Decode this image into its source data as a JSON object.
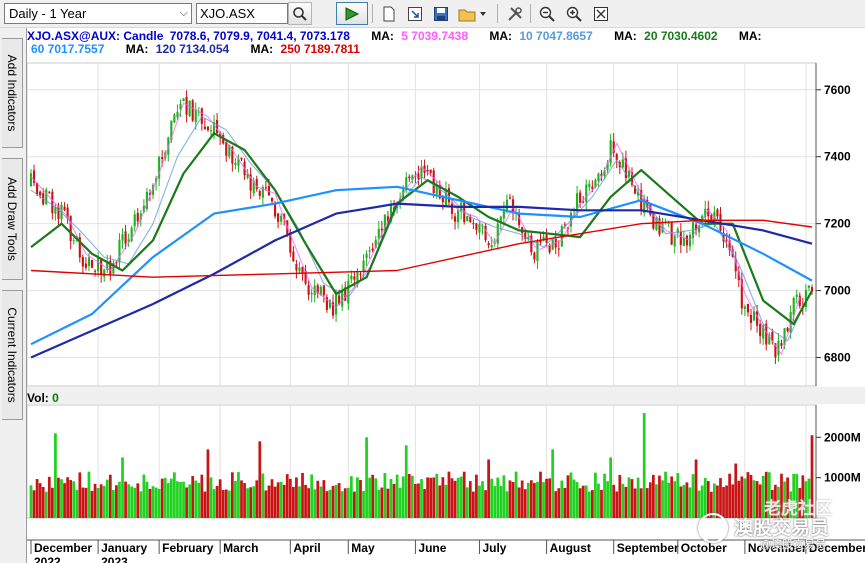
{
  "toolbar": {
    "period_select": "Daily - 1 Year",
    "symbol_input": "XJO.ASX"
  },
  "side_tabs": [
    "Add Indicators",
    "Add Draw Tools",
    "Current Indicators"
  ],
  "legend": {
    "symbol": "XJO.ASX@AUX: Candle",
    "ohlc": "7078.6, 7079.9, 7041.4, 7073.178",
    "ma": [
      {
        "label": "MA:",
        "text": "5 7039.7438",
        "color": "#ff5cff"
      },
      {
        "label": "MA:",
        "text": "10 7047.8657",
        "color": "#5b9bd5"
      },
      {
        "label": "MA:",
        "text": "20 7030.4602",
        "color": "#1a7a1a"
      },
      {
        "label": "MA:",
        "text": "60 7017.7557",
        "color": "#1e90ff"
      },
      {
        "label": "MA:",
        "text": "120 7134.054",
        "color": "#1c2aa8"
      },
      {
        "label": "MA:",
        "text": "250 7189.7811",
        "color": "#e00000"
      }
    ]
  },
  "volume": {
    "label": "Vol:",
    "value": "0"
  },
  "watermark": {
    "line1": "老虎社区",
    "line2": "澳股交易员",
    "line3": "@澳股交易员"
  },
  "chart_data": {
    "type": "candlestick",
    "y_ticks": [
      6800,
      7000,
      7200,
      7400,
      7600
    ],
    "ylim": [
      6715,
      7680
    ],
    "volume_ticks": [
      "1000M",
      "2000M"
    ],
    "months": [
      "December",
      "January",
      "February",
      "March",
      "April",
      "May",
      "June",
      "July",
      "August",
      "September",
      "October",
      "November",
      "December"
    ],
    "years": [
      "2022",
      "2023"
    ],
    "series": [
      {
        "name": "MA 5",
        "color": "#ff5cff",
        "x": [
          0,
          6,
          12,
          18,
          26,
          34,
          42,
          50,
          58,
          66,
          74,
          80,
          84,
          92,
          100,
          108,
          116,
          122,
          128,
          134,
          140,
          146,
          152,
          158,
          166,
          174,
          180,
          186,
          192,
          200,
          208,
          216,
          222,
          228,
          234,
          240,
          246,
          252
        ],
        "y": [
          7340,
          7280,
          7220,
          7110,
          7060,
          7170,
          7350,
          7560,
          7520,
          7420,
          7310,
          7290,
          7190,
          7010,
          6950,
          7030,
          7190,
          7290,
          7370,
          7320,
          7240,
          7220,
          7140,
          7250,
          7120,
          7150,
          7260,
          7320,
          7440,
          7290,
          7180,
          7150,
          7240,
          7180,
          6990,
          6890,
          6810,
          6980
        ]
      },
      {
        "name": "MA 10",
        "color": "#5b9bd5",
        "x": [
          0,
          8,
          16,
          24,
          32,
          40,
          48,
          56,
          64,
          72,
          80,
          88,
          96,
          104,
          112,
          120,
          128,
          136,
          144,
          152,
          160,
          168,
          176,
          184,
          192,
          200,
          208,
          216,
          224,
          232,
          240,
          248,
          252
        ],
        "y": [
          7300,
          7250,
          7180,
          7100,
          7080,
          7200,
          7400,
          7520,
          7480,
          7380,
          7300,
          7180,
          7020,
          6980,
          7080,
          7250,
          7340,
          7290,
          7220,
          7190,
          7170,
          7130,
          7200,
          7280,
          7390,
          7280,
          7170,
          7180,
          7200,
          7080,
          6900,
          6850,
          6930
        ]
      },
      {
        "name": "MA 20",
        "color": "#1a7a1a",
        "x": [
          0,
          10,
          20,
          30,
          40,
          50,
          60,
          70,
          80,
          90,
          100,
          110,
          120,
          130,
          140,
          150,
          160,
          170,
          180,
          190,
          200,
          210,
          220,
          230,
          240,
          250,
          256
        ],
        "y": [
          7130,
          7200,
          7110,
          7060,
          7150,
          7350,
          7470,
          7420,
          7300,
          7140,
          6990,
          7040,
          7260,
          7330,
          7280,
          7220,
          7180,
          7170,
          7160,
          7280,
          7360,
          7280,
          7200,
          7200,
          6970,
          6900,
          7000
        ]
      },
      {
        "name": "MA 60",
        "color": "#1e90ff",
        "x": [
          0,
          20,
          40,
          60,
          80,
          100,
          120,
          140,
          160,
          180,
          200,
          220,
          240,
          256
        ],
        "y": [
          6840,
          6930,
          7100,
          7230,
          7260,
          7300,
          7310,
          7270,
          7230,
          7220,
          7270,
          7200,
          7110,
          7030
        ]
      },
      {
        "name": "MA 120",
        "color": "#1c2aa8",
        "x": [
          0,
          40,
          60,
          80,
          100,
          120,
          140,
          160,
          180,
          200,
          220,
          240,
          256
        ],
        "y": [
          6800,
          6960,
          7050,
          7150,
          7230,
          7260,
          7250,
          7250,
          7240,
          7240,
          7210,
          7180,
          7140
        ]
      },
      {
        "name": "MA 250",
        "color": "#e00000",
        "x": [
          0,
          40,
          80,
          120,
          160,
          200,
          220,
          240,
          256
        ],
        "y": [
          7060,
          7040,
          7050,
          7060,
          7140,
          7200,
          7210,
          7210,
          7190
        ]
      }
    ]
  }
}
